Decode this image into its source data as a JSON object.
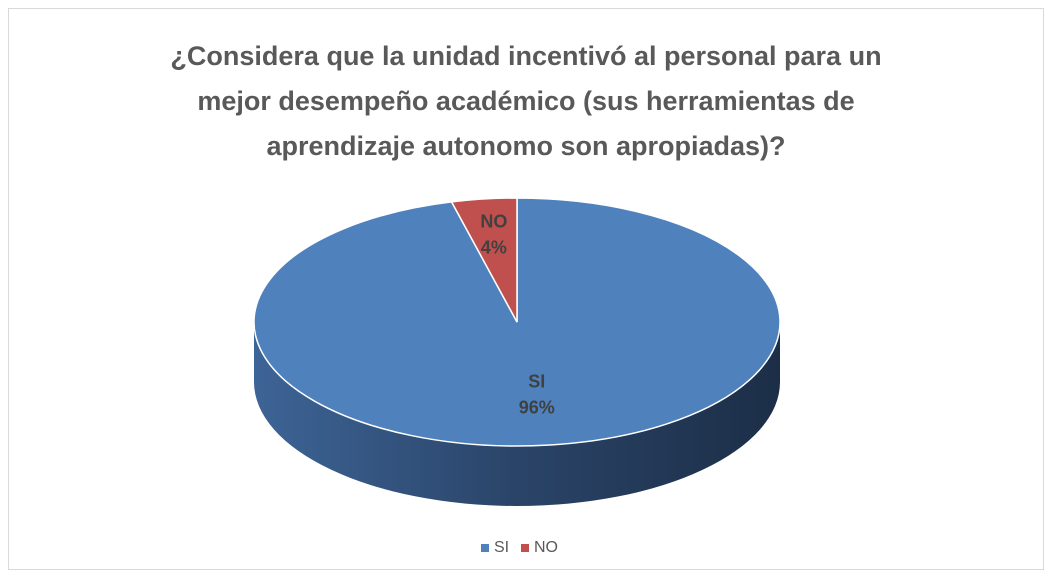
{
  "chart_data": {
    "type": "pie",
    "title": "¿Considera que la unidad incentivó al personal para un mejor desempeño académico (sus herramientas de aprendizaje autonomo son apropiadas)?",
    "categories": [
      "SI",
      "NO"
    ],
    "values": [
      96,
      4
    ],
    "value_labels": [
      "96%",
      "4%"
    ],
    "colors": [
      "#4f81bd",
      "#c0504d"
    ],
    "legend": "bottom"
  }
}
